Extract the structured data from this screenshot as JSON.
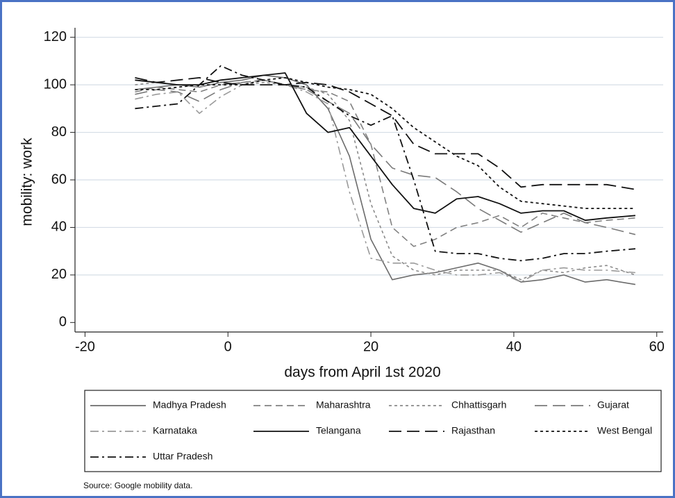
{
  "chart_data": {
    "type": "line",
    "xlabel": "days from April 1st 2020",
    "ylabel": "mobility: work",
    "source": "Source: Google mobility data.",
    "x": [
      -13,
      -10,
      -7,
      -4,
      -1,
      2,
      5,
      8,
      11,
      14,
      17,
      20,
      23,
      26,
      29,
      32,
      35,
      38,
      41,
      44,
      47,
      50,
      53,
      57
    ],
    "xlim": [
      -21.4,
      60.9
    ],
    "ylim": [
      -4,
      124
    ],
    "xticks": [
      -20,
      0,
      20,
      40,
      60
    ],
    "yticks": [
      0,
      20,
      40,
      60,
      80,
      100,
      120
    ],
    "grid": true,
    "legend": "bottom",
    "series": [
      {
        "name": "Madhya Pradesh",
        "color": "#6b6b6b",
        "style": "solid",
        "values": [
          98,
          99,
          100,
          99,
          101,
          102,
          104,
          103,
          100,
          90,
          70,
          35,
          18,
          20,
          21,
          23,
          25,
          22,
          17,
          18,
          20,
          17,
          18,
          16
        ]
      },
      {
        "name": "Maharashtra",
        "color": "#808080",
        "style": "dash",
        "values": [
          97,
          99,
          98,
          97,
          100,
          101,
          102,
          100,
          98,
          97,
          93,
          75,
          40,
          32,
          35,
          40,
          42,
          45,
          40,
          46,
          44,
          42,
          43,
          44
        ]
      },
      {
        "name": "Chhattisgarh",
        "color": "#8a8a8a",
        "style": "dot",
        "values": [
          100,
          101,
          100,
          99,
          101,
          100,
          101,
          100,
          99,
          96,
          85,
          50,
          28,
          22,
          20,
          22,
          22,
          22,
          18,
          22,
          21,
          23,
          24,
          20
        ]
      },
      {
        "name": "Gujarat",
        "color": "#7a7a7a",
        "style": "longdash",
        "values": [
          96,
          98,
          97,
          93,
          98,
          101,
          102,
          100,
          98,
          93,
          88,
          75,
          65,
          62,
          61,
          55,
          48,
          43,
          38,
          42,
          46,
          42,
          40,
          37
        ]
      },
      {
        "name": "Karnataka",
        "color": "#9a9a9a",
        "style": "dashdot",
        "values": [
          94,
          96,
          97,
          88,
          95,
          100,
          102,
          100,
          97,
          92,
          55,
          27,
          25,
          25,
          22,
          20,
          20,
          21,
          17,
          22,
          23,
          22,
          22,
          21
        ]
      },
      {
        "name": "Telangana",
        "color": "#111111",
        "style": "solid",
        "values": [
          102,
          101,
          100,
          100,
          102,
          103,
          104,
          105,
          88,
          80,
          82,
          70,
          58,
          48,
          46,
          52,
          53,
          50,
          46,
          47,
          47,
          43,
          44,
          45
        ]
      },
      {
        "name": "Rajasthan",
        "color": "#111111",
        "style": "longdash",
        "values": [
          103,
          101,
          102,
          103,
          101,
          100,
          100,
          100,
          101,
          100,
          97,
          92,
          87,
          75,
          71,
          71,
          71,
          65,
          57,
          58,
          58,
          58,
          58,
          56
        ]
      },
      {
        "name": "West Bengal",
        "color": "#111111",
        "style": "dot",
        "values": [
          98,
          98,
          99,
          100,
          100,
          100,
          102,
          103,
          101,
          99,
          98,
          96,
          90,
          82,
          76,
          70,
          66,
          57,
          51,
          50,
          49,
          48,
          48,
          48
        ]
      },
      {
        "name": "Uttar Pradesh",
        "color": "#111111",
        "style": "dashdot",
        "values": [
          90,
          91,
          92,
          100,
          108,
          104,
          102,
          100,
          99,
          93,
          87,
          83,
          87,
          60,
          30,
          29,
          29,
          27,
          26,
          27,
          29,
          29,
          30,
          31
        ]
      }
    ]
  }
}
